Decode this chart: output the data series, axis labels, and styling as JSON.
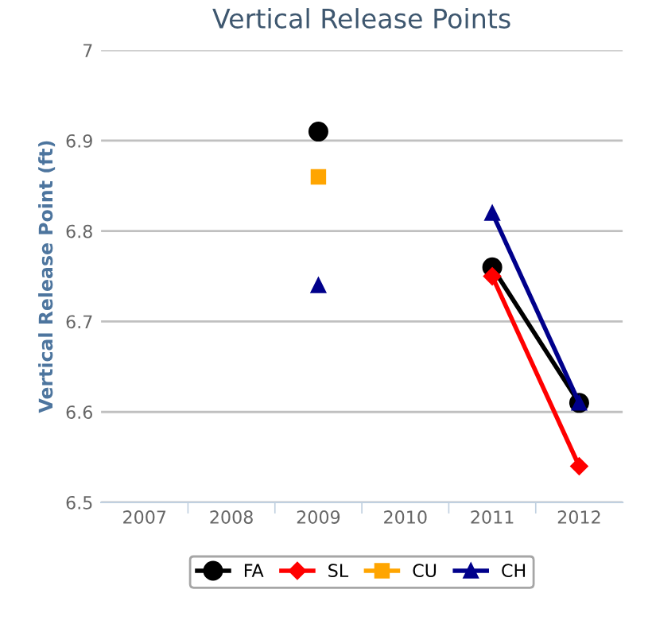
{
  "chart_data": {
    "type": "line",
    "title": "Vertical Release Points",
    "ylabel": "Vertical Release Point (ft)",
    "categories": [
      "2007",
      "2008",
      "2009",
      "2010",
      "2011",
      "2012"
    ],
    "series": [
      {
        "name": "FA",
        "color": "#000000",
        "marker": "circle",
        "values": [
          null,
          null,
          6.91,
          null,
          6.76,
          6.61
        ]
      },
      {
        "name": "SL",
        "color": "#ff0000",
        "marker": "diamond",
        "values": [
          null,
          null,
          null,
          null,
          6.75,
          6.54
        ]
      },
      {
        "name": "CU",
        "color": "#ffa500",
        "marker": "square",
        "values": [
          null,
          null,
          6.86,
          null,
          null,
          null
        ]
      },
      {
        "name": "CH",
        "color": "#00008b",
        "marker": "triangle",
        "values": [
          null,
          null,
          6.74,
          null,
          6.82,
          6.61
        ]
      }
    ],
    "ylim": [
      6.5,
      7
    ],
    "yticks": [
      6.5,
      6.6,
      6.7,
      6.8,
      6.9,
      7
    ],
    "grid": "y",
    "legend": "bottom"
  }
}
